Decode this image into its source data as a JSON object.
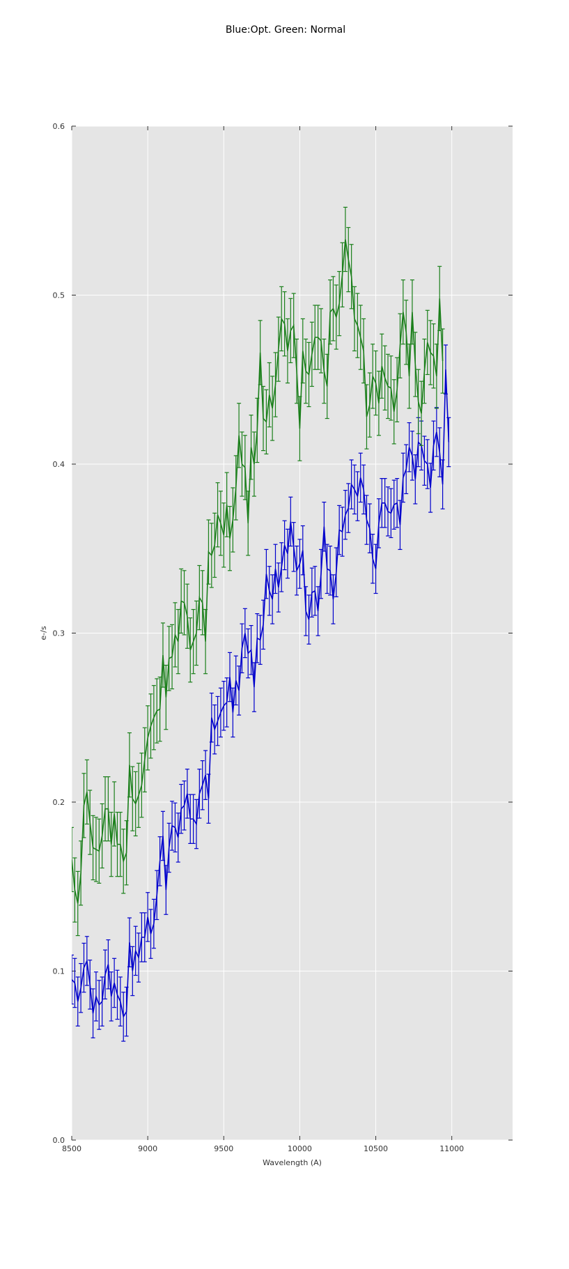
{
  "chart_data": {
    "type": "line",
    "title": "Blue:Opt. Green: Normal",
    "xlabel": "Wavelength (A)",
    "ylabel": "e-/s",
    "xlim": [
      8500,
      11400
    ],
    "ylim": [
      0.0,
      0.6
    ],
    "xticks": [
      8500,
      9000,
      9500,
      10000,
      10500,
      11000
    ],
    "xtick_labels": [
      "8500",
      "9000",
      "9500",
      "10000",
      "10500",
      "11000"
    ],
    "yticks": [
      0.0,
      0.1,
      0.2,
      0.3,
      0.4,
      0.5,
      0.6
    ],
    "ytick_labels": [
      "0.0",
      "0.1",
      "0.2",
      "0.3",
      "0.4",
      "0.5",
      "0.6"
    ],
    "grid": true,
    "colors": {
      "background": "#e5e5e5",
      "grid": "#ffffff",
      "blue": "#0000cc",
      "green": "#1a7f1a"
    },
    "error_bars": true,
    "x_start": 8500,
    "x_step": 20,
    "series": [
      {
        "color": "#0000cc",
        "yerr": 0.0145,
        "values": [
          0.095,
          0.093,
          0.082,
          0.09,
          0.102,
          0.106,
          0.092,
          0.075,
          0.085,
          0.08,
          0.082,
          0.098,
          0.104,
          0.085,
          0.093,
          0.086,
          0.082,
          0.073,
          0.076,
          0.117,
          0.1,
          0.112,
          0.108,
          0.12,
          0.12,
          0.132,
          0.122,
          0.128,
          0.145,
          0.165,
          0.18,
          0.148,
          0.173,
          0.186,
          0.185,
          0.179,
          0.196,
          0.198,
          0.205,
          0.19,
          0.19,
          0.187,
          0.205,
          0.21,
          0.216,
          0.202,
          0.25,
          0.243,
          0.248,
          0.253,
          0.257,
          0.259,
          0.274,
          0.253,
          0.272,
          0.266,
          0.291,
          0.3,
          0.288,
          0.29,
          0.268,
          0.297,
          0.296,
          0.305,
          0.335,
          0.325,
          0.32,
          0.338,
          0.327,
          0.339,
          0.352,
          0.347,
          0.366,
          0.351,
          0.337,
          0.341,
          0.349,
          0.313,
          0.308,
          0.324,
          0.325,
          0.313,
          0.335,
          0.363,
          0.338,
          0.337,
          0.32,
          0.336,
          0.361,
          0.36,
          0.37,
          0.374,
          0.388,
          0.385,
          0.381,
          0.392,
          0.385,
          0.367,
          0.362,
          0.344,
          0.338,
          0.365,
          0.377,
          0.377,
          0.372,
          0.371,
          0.376,
          0.377,
          0.364,
          0.392,
          0.397,
          0.41,
          0.405,
          0.391,
          0.413,
          0.411,
          0.402,
          0.4,
          0.386,
          0.411,
          0.419,
          0.407,
          0.388,
          0.456,
          0.413
        ]
      },
      {
        "color": "#1a7f1a",
        "yerr": 0.019,
        "values": [
          0.166,
          0.148,
          0.14,
          0.158,
          0.198,
          0.206,
          0.188,
          0.173,
          0.172,
          0.171,
          0.18,
          0.196,
          0.196,
          0.175,
          0.193,
          0.175,
          0.175,
          0.165,
          0.17,
          0.222,
          0.202,
          0.199,
          0.204,
          0.21,
          0.225,
          0.238,
          0.245,
          0.25,
          0.254,
          0.255,
          0.287,
          0.262,
          0.285,
          0.286,
          0.299,
          0.295,
          0.319,
          0.318,
          0.31,
          0.29,
          0.295,
          0.3,
          0.321,
          0.318,
          0.295,
          0.348,
          0.346,
          0.352,
          0.37,
          0.365,
          0.358,
          0.376,
          0.356,
          0.367,
          0.386,
          0.417,
          0.4,
          0.398,
          0.365,
          0.41,
          0.4,
          0.42,
          0.466,
          0.427,
          0.425,
          0.441,
          0.433,
          0.447,
          0.468,
          0.486,
          0.483,
          0.467,
          0.479,
          0.482,
          0.455,
          0.421,
          0.467,
          0.455,
          0.453,
          0.465,
          0.475,
          0.475,
          0.473,
          0.455,
          0.446,
          0.49,
          0.492,
          0.487,
          0.495,
          0.512,
          0.533,
          0.521,
          0.511,
          0.486,
          0.482,
          0.475,
          0.467,
          0.428,
          0.435,
          0.452,
          0.448,
          0.436,
          0.458,
          0.451,
          0.446,
          0.445,
          0.431,
          0.444,
          0.47,
          0.49,
          0.478,
          0.452,
          0.49,
          0.459,
          0.437,
          0.43,
          0.455,
          0.472,
          0.466,
          0.464,
          0.452,
          0.498,
          0.461
        ]
      }
    ]
  }
}
